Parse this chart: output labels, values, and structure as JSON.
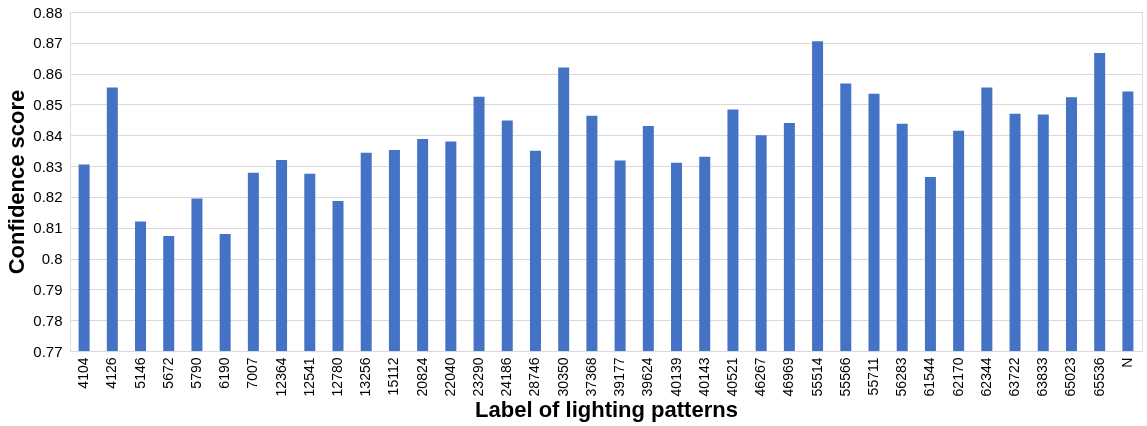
{
  "chart_data": {
    "type": "bar",
    "xlabel": "Label of lighting patterns",
    "ylabel": "Confidence score",
    "categories": [
      "4104",
      "4126",
      "5146",
      "5672",
      "5790",
      "6190",
      "7007",
      "12364",
      "12541",
      "12780",
      "13256",
      "15112",
      "20824",
      "22040",
      "23290",
      "24186",
      "28746",
      "30350",
      "37368",
      "39177",
      "39624",
      "40139",
      "40143",
      "40521",
      "46267",
      "46969",
      "55514",
      "55566",
      "55711",
      "56283",
      "61544",
      "62170",
      "62344",
      "63722",
      "63833",
      "65023",
      "65536",
      "N"
    ],
    "values": [
      0.8305,
      0.8555,
      0.812,
      0.8073,
      0.8195,
      0.808,
      0.8278,
      0.832,
      0.8275,
      0.8187,
      0.8343,
      0.8352,
      0.8388,
      0.838,
      0.8525,
      0.8448,
      0.835,
      0.862,
      0.8463,
      0.8318,
      0.843,
      0.8311,
      0.833,
      0.8484,
      0.84,
      0.844,
      0.8705,
      0.8568,
      0.8535,
      0.8437,
      0.8265,
      0.8415,
      0.8555,
      0.847,
      0.8467,
      0.8523,
      0.8667,
      0.8542
    ],
    "color": "#4472c4",
    "ylim": [
      0.77,
      0.88
    ],
    "yticks": [
      0.77,
      0.78,
      0.79,
      0.8,
      0.81,
      0.82,
      0.83,
      0.84,
      0.85,
      0.86,
      0.87,
      0.88
    ],
    "grid": "y"
  }
}
